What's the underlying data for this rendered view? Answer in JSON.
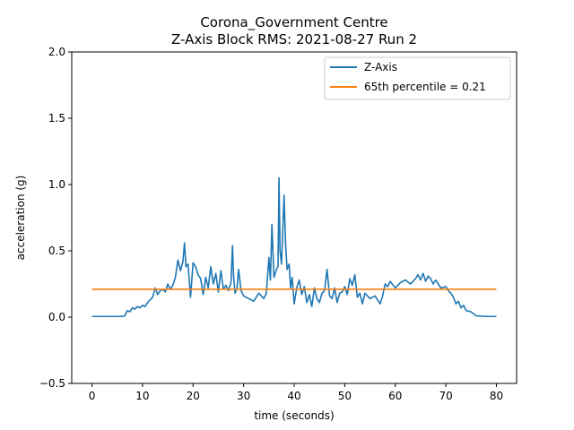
{
  "chart_data": {
    "type": "line",
    "title": "Corona_Government Centre",
    "subtitle": "Z-Axis Block RMS: 2021-08-27 Run 2",
    "xlabel": "time (seconds)",
    "ylabel": "acceleration (g)",
    "xlim": [
      -4,
      84
    ],
    "ylim": [
      -0.5,
      2.0
    ],
    "xticks": [
      0,
      10,
      20,
      30,
      40,
      50,
      60,
      70,
      80
    ],
    "yticks": [
      -0.5,
      0.0,
      0.5,
      1.0,
      1.5,
      2.0
    ],
    "ytick_labels": [
      "−0.5",
      "0.0",
      "0.5",
      "1.0",
      "1.5",
      "2.0"
    ],
    "grid": false,
    "legend_position": "top-right",
    "colors": {
      "z_axis": "#1f77b4",
      "percentile": "#ff7f0e"
    },
    "series": [
      {
        "name": "Z-Axis",
        "x": [
          0,
          2,
          4,
          6,
          6.5,
          7,
          7.5,
          8,
          8.5,
          9,
          9.5,
          10,
          10.5,
          11,
          11.5,
          12,
          12.5,
          13,
          13.5,
          14,
          14.5,
          15,
          15.5,
          16,
          16.5,
          17,
          17.5,
          18,
          18.3,
          18.6,
          19,
          19.5,
          20,
          20.5,
          21,
          21.5,
          22,
          22.5,
          23,
          23.5,
          24,
          24.5,
          25,
          25.5,
          26,
          26.5,
          27,
          27.5,
          27.8,
          28,
          28.3,
          28.7,
          29,
          29.5,
          30,
          31,
          32,
          33,
          34,
          34.5,
          35,
          35.3,
          35.6,
          36,
          36.5,
          36.8,
          37,
          37.2,
          37.5,
          38,
          38.3,
          38.6,
          39,
          39.3,
          39.6,
          40,
          40.5,
          41,
          41.5,
          42,
          42.5,
          43,
          43.5,
          44,
          44.5,
          45,
          45.5,
          46,
          46.5,
          47,
          47.5,
          48,
          48.5,
          49,
          49.5,
          50,
          50.5,
          51,
          51.5,
          52,
          52.5,
          53,
          53.5,
          54,
          55,
          56,
          57,
          57.5,
          58,
          58.5,
          59,
          60,
          61,
          62,
          63,
          64,
          64.5,
          65,
          65.5,
          66,
          66.5,
          67,
          67.5,
          68,
          69,
          70,
          70.5,
          71,
          71.5,
          72,
          72.5,
          73,
          73.5,
          74,
          75,
          76,
          78,
          80
        ],
        "values": [
          0.005,
          0.005,
          0.005,
          0.005,
          0.01,
          0.05,
          0.04,
          0.07,
          0.06,
          0.08,
          0.07,
          0.09,
          0.08,
          0.11,
          0.13,
          0.15,
          0.22,
          0.17,
          0.2,
          0.21,
          0.19,
          0.25,
          0.21,
          0.24,
          0.3,
          0.43,
          0.35,
          0.42,
          0.56,
          0.38,
          0.4,
          0.15,
          0.41,
          0.38,
          0.32,
          0.29,
          0.17,
          0.3,
          0.22,
          0.38,
          0.25,
          0.33,
          0.19,
          0.35,
          0.21,
          0.24,
          0.2,
          0.26,
          0.54,
          0.32,
          0.18,
          0.22,
          0.36,
          0.2,
          0.16,
          0.14,
          0.12,
          0.18,
          0.14,
          0.18,
          0.45,
          0.28,
          0.7,
          0.3,
          0.36,
          0.38,
          1.05,
          0.5,
          0.4,
          0.92,
          0.55,
          0.36,
          0.4,
          0.22,
          0.3,
          0.1,
          0.22,
          0.28,
          0.17,
          0.23,
          0.11,
          0.17,
          0.08,
          0.22,
          0.14,
          0.11,
          0.18,
          0.2,
          0.36,
          0.16,
          0.14,
          0.22,
          0.11,
          0.18,
          0.19,
          0.23,
          0.17,
          0.29,
          0.24,
          0.32,
          0.15,
          0.18,
          0.1,
          0.18,
          0.14,
          0.16,
          0.1,
          0.16,
          0.25,
          0.23,
          0.27,
          0.22,
          0.26,
          0.28,
          0.25,
          0.29,
          0.32,
          0.28,
          0.33,
          0.27,
          0.31,
          0.29,
          0.25,
          0.28,
          0.22,
          0.23,
          0.2,
          0.18,
          0.15,
          0.1,
          0.12,
          0.07,
          0.09,
          0.05,
          0.04,
          0.01,
          0.005,
          0.005
        ]
      },
      {
        "name": "65th percentile = 0.21",
        "x": [
          0,
          80
        ],
        "values": [
          0.21,
          0.21
        ]
      }
    ]
  }
}
